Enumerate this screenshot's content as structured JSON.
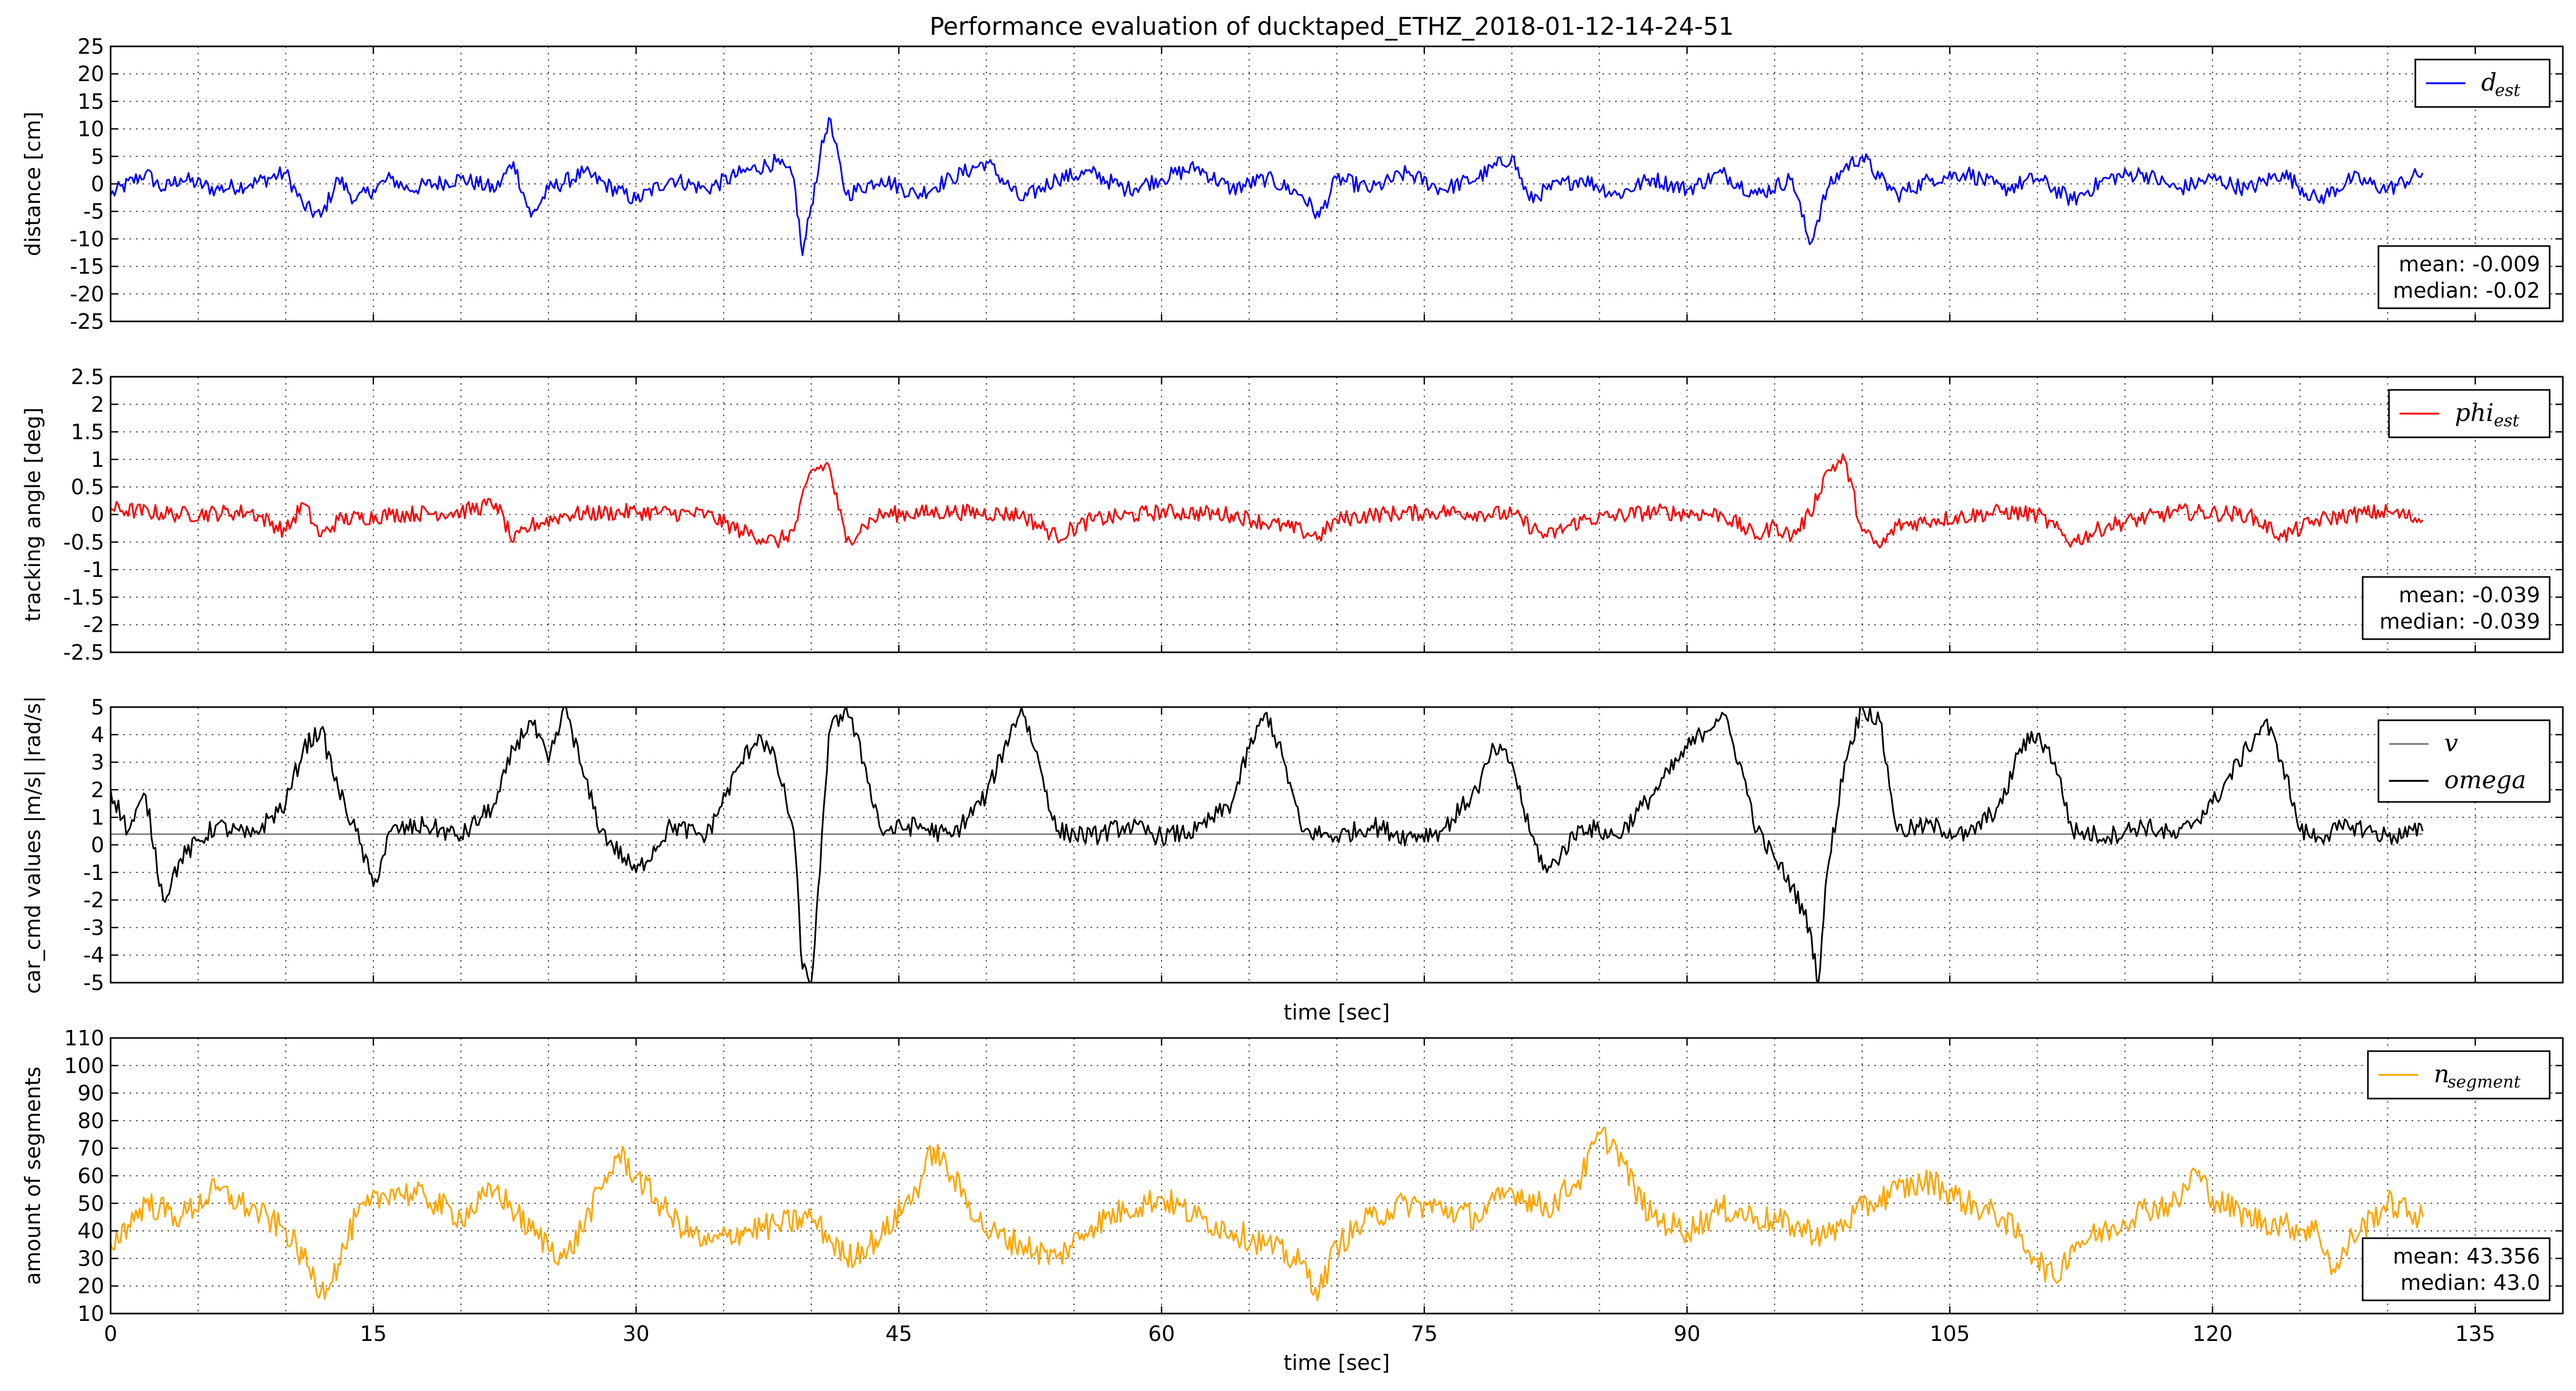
{
  "figure_title": "Performance evaluation of ducktaped_ETHZ_2018-01-12-14-24-51",
  "colors": {
    "d_est": "#0000ff",
    "phi_est": "#ff0000",
    "v": "#808080",
    "omega": "#000000",
    "n_segment": "#ffa500"
  },
  "chart_data": [
    {
      "type": "line",
      "id": "distance",
      "title": "Performance evaluation of ducktaped_ETHZ_2018-01-12-14-24-51",
      "xlabel": "",
      "ylabel": "distance [cm]",
      "xlim": [
        0,
        140
      ],
      "ylim": [
        -25,
        25
      ],
      "yticks": [
        -25,
        -20,
        -15,
        -10,
        -5,
        0,
        5,
        10,
        15,
        20,
        25
      ],
      "xticks": [
        0,
        15,
        30,
        45,
        60,
        75,
        90,
        105,
        120,
        135
      ],
      "show_xtick_labels": false,
      "legend_position": "top-right",
      "series": [
        {
          "name": "d",
          "subscript": "est",
          "color": "#0000ff",
          "x": [
            0,
            2,
            3,
            4,
            6,
            8,
            10,
            11,
            12,
            13,
            14,
            15,
            16,
            17,
            20,
            22,
            23,
            24,
            25,
            27,
            30,
            32,
            34,
            36,
            38,
            39,
            39.5,
            40,
            40.5,
            41,
            42,
            44,
            46,
            48,
            50,
            52,
            54,
            56,
            58,
            60,
            62,
            64,
            66,
            68,
            69,
            70,
            72,
            74,
            76,
            78,
            80,
            81,
            82,
            84,
            86,
            88,
            90,
            92,
            94,
            96,
            97,
            98,
            99,
            100,
            101,
            102,
            104,
            106,
            108,
            110,
            112,
            114,
            116,
            118,
            120,
            122,
            124,
            126,
            128,
            130,
            132
          ],
          "values": [
            -2,
            2,
            -1,
            1,
            -1,
            0,
            2,
            -4,
            -6,
            1,
            -3,
            -1,
            1,
            -1,
            1,
            -1,
            4,
            -6,
            -1,
            2,
            -3,
            1,
            -1,
            2,
            4,
            1,
            -13,
            -4,
            5,
            12,
            -2,
            1,
            -2,
            1,
            4,
            -3,
            1,
            2,
            -1,
            1,
            3,
            -1,
            1,
            -2,
            -6,
            1,
            -1,
            2,
            -1,
            1,
            5,
            -3,
            -1,
            1,
            -2,
            1,
            -1,
            2,
            -2,
            1,
            -11,
            -1,
            3,
            5,
            1,
            -2,
            1,
            2,
            -1,
            1,
            -3,
            1,
            2,
            -1,
            1,
            -1,
            2,
            -3,
            1,
            -1,
            2
          ]
        }
      ],
      "stats": {
        "mean": "mean: -0.009",
        "median": "median: -0.02"
      }
    },
    {
      "type": "line",
      "id": "tracking_angle",
      "xlabel": "",
      "ylabel": "tracking angle [deg]",
      "xlim": [
        0,
        140
      ],
      "ylim": [
        -2.5,
        2.5
      ],
      "yticks": [
        -2.5,
        -2.0,
        -1.5,
        -1.0,
        -0.5,
        0.0,
        0.5,
        1.0,
        1.5,
        2.0,
        2.5
      ],
      "xticks": [
        0,
        15,
        30,
        45,
        60,
        75,
        90,
        105,
        120,
        135
      ],
      "show_xtick_labels": false,
      "legend_position": "top-right",
      "series": [
        {
          "name": "phi",
          "subscript": "est",
          "color": "#ff0000",
          "x": [
            0,
            4,
            8,
            10,
            11,
            12,
            13,
            16,
            20,
            22,
            23,
            24,
            26,
            30,
            34,
            36,
            38,
            39,
            40,
            41,
            42,
            43,
            44,
            48,
            52,
            54,
            56,
            60,
            64,
            68,
            69,
            70,
            72,
            76,
            80,
            82,
            84,
            88,
            92,
            94,
            95,
            96,
            97,
            98,
            99,
            100,
            101,
            102,
            104,
            108,
            110,
            112,
            114,
            118,
            122,
            124,
            126,
            128,
            130,
            132
          ],
          "values": [
            0.1,
            0.0,
            0.05,
            -0.3,
            0.2,
            -0.4,
            -0.1,
            0.0,
            0.05,
            0.2,
            -0.5,
            -0.2,
            0.0,
            0.05,
            0.0,
            -0.3,
            -0.5,
            -0.3,
            0.8,
            0.9,
            -0.5,
            -0.2,
            0.0,
            0.05,
            0.0,
            -0.4,
            -0.1,
            0.05,
            0.0,
            -0.3,
            -0.4,
            -0.1,
            0.0,
            0.05,
            0.0,
            -0.4,
            -0.1,
            0.05,
            0.0,
            -0.4,
            -0.2,
            -0.4,
            0.0,
            0.8,
            1.0,
            -0.3,
            -0.6,
            -0.2,
            -0.1,
            0.05,
            0.0,
            -0.5,
            -0.2,
            0.05,
            0.0,
            -0.4,
            -0.1,
            0.0,
            0.05,
            -0.1
          ]
        }
      ],
      "stats": {
        "mean": "mean: -0.039",
        "median": "median: -0.039"
      }
    },
    {
      "type": "line",
      "id": "car_cmd",
      "xlabel": "time [sec]",
      "ylabel": "car_cmd values |m/s| |rad/s|",
      "xlim": [
        0,
        140
      ],
      "ylim": [
        -5,
        5
      ],
      "yticks": [
        -5,
        -4,
        -3,
        -2,
        -1,
        0,
        1,
        2,
        3,
        4,
        5
      ],
      "xticks": [
        0,
        15,
        30,
        45,
        60,
        75,
        90,
        105,
        120,
        135
      ],
      "show_xtick_labels": false,
      "legend_position": "top-right",
      "series": [
        {
          "name": "v",
          "color": "#808080",
          "x": [
            0,
            132
          ],
          "values": [
            0.39,
            0.39
          ]
        },
        {
          "name": "omega",
          "color": "#000000",
          "x": [
            0,
            1,
            2,
            3,
            4,
            6,
            8,
            10,
            11,
            12,
            13,
            14,
            15,
            16,
            18,
            20,
            22,
            23,
            24,
            25,
            26,
            27,
            28,
            30,
            32,
            34,
            36,
            37,
            38,
            39,
            39.5,
            40,
            40.5,
            41,
            42,
            43,
            44,
            46,
            48,
            50,
            51,
            52,
            53,
            54,
            56,
            58,
            60,
            62,
            64,
            65,
            66,
            67,
            68,
            70,
            72,
            74,
            76,
            78,
            79,
            80,
            81,
            82,
            84,
            86,
            88,
            90,
            92,
            93,
            94,
            95,
            96,
            97,
            97.5,
            98,
            99,
            100,
            101,
            102,
            104,
            106,
            108,
            109,
            110,
            111,
            112,
            114,
            116,
            118,
            120,
            122,
            123,
            124,
            125,
            126,
            128,
            130,
            132
          ],
          "values": [
            2,
            0.5,
            1.8,
            -2,
            -0.5,
            0.7,
            0.3,
            1.5,
            3.5,
            4.2,
            2,
            0.5,
            -1.5,
            0.5,
            0.7,
            0.3,
            1.5,
            3.5,
            4.5,
            3,
            5,
            2.5,
            0.5,
            -1,
            0.7,
            0.3,
            3,
            4,
            3,
            0.5,
            -4.5,
            -5,
            -1,
            4,
            5,
            3,
            0.5,
            0.7,
            0.3,
            1.8,
            3.5,
            5,
            3,
            0.5,
            0.3,
            0.7,
            0.3,
            0.5,
            1.5,
            3.5,
            4.8,
            3,
            0.5,
            0.3,
            0.7,
            0.3,
            0.5,
            2,
            3.5,
            3,
            0.5,
            -1,
            0.7,
            0.3,
            1.8,
            3.5,
            4.8,
            3,
            0.5,
            -0.5,
            -1.5,
            -3,
            -5,
            -1,
            3,
            5,
            4.5,
            0.5,
            0.7,
            0.3,
            1.5,
            3.5,
            4,
            3,
            0.5,
            0.3,
            0.7,
            0.3,
            1.5,
            3.5,
            4.5,
            3,
            0.5,
            0.3,
            0.7,
            0.3,
            0.5
          ]
        }
      ]
    },
    {
      "type": "line",
      "id": "segments",
      "xlabel": "time [sec]",
      "ylabel": "amount of segments",
      "xlim": [
        0,
        140
      ],
      "ylim": [
        10,
        110
      ],
      "yticks": [
        10,
        20,
        30,
        40,
        50,
        60,
        70,
        80,
        90,
        100,
        110
      ],
      "xticks": [
        0,
        15,
        30,
        45,
        60,
        75,
        90,
        105,
        120,
        135
      ],
      "show_xtick_labels": true,
      "legend_position": "top-right",
      "series": [
        {
          "name": "n",
          "subscript": "segment",
          "color": "#ffa500",
          "x": [
            0,
            2,
            4,
            6,
            8,
            10,
            11,
            12,
            13,
            14,
            16,
            18,
            20,
            22,
            24,
            26,
            28,
            29,
            30,
            32,
            34,
            36,
            38,
            40,
            42,
            44,
            46,
            47,
            48,
            50,
            52,
            54,
            56,
            58,
            60,
            62,
            64,
            66,
            68,
            69,
            70,
            72,
            74,
            76,
            78,
            80,
            82,
            84,
            85,
            86,
            87,
            88,
            90,
            92,
            94,
            96,
            98,
            100,
            102,
            104,
            106,
            108,
            110,
            111,
            112,
            114,
            116,
            118,
            119,
            120,
            122,
            124,
            126,
            127,
            128,
            130,
            132
          ],
          "values": [
            35,
            50,
            45,
            55,
            48,
            40,
            30,
            18,
            28,
            45,
            55,
            52,
            45,
            55,
            40,
            30,
            55,
            68,
            60,
            45,
            35,
            40,
            42,
            45,
            30,
            38,
            55,
            70,
            60,
            40,
            35,
            30,
            42,
            48,
            52,
            45,
            40,
            35,
            28,
            18,
            35,
            45,
            50,
            48,
            45,
            55,
            48,
            60,
            75,
            70,
            55,
            45,
            40,
            48,
            45,
            42,
            38,
            48,
            55,
            58,
            50,
            45,
            30,
            22,
            35,
            40,
            48,
            50,
            62,
            52,
            45,
            42,
            40,
            25,
            38,
            50,
            45
          ]
        }
      ],
      "stats": {
        "mean": "mean: 43.356",
        "median": "median: 43.0"
      }
    }
  ]
}
